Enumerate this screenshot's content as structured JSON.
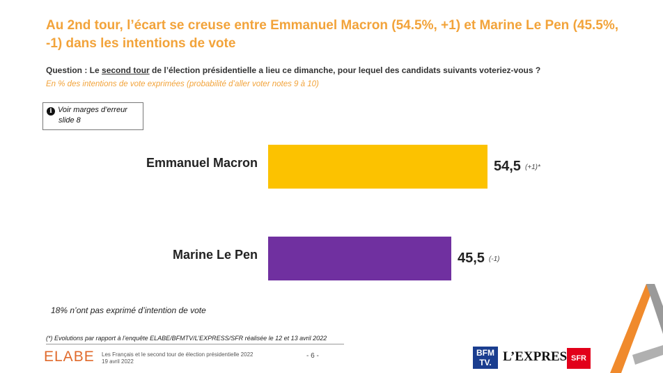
{
  "title": "Au 2nd tour, l’écart se creuse entre Emmanuel Macron (54.5%, +1) et Marine Le Pen (45.5%, -1) dans les intentions de vote",
  "question": {
    "prefix": "Question : Le ",
    "underlined": "second tour",
    "suffix": " de l’élection présidentielle a lieu ce dimanche, pour lequel des candidats suivants voteriez-vous ?"
  },
  "subquestion": "En % des intentions de vote exprimées (probabilité d’aller voter notes 9 à 10)",
  "note_box": {
    "line1": "Voir marges d’erreur",
    "line2": "slide 8",
    "icon": "info-icon"
  },
  "chart_data": {
    "type": "bar",
    "orientation": "horizontal",
    "categories": [
      "Emmanuel Macron",
      "Marine Le Pen"
    ],
    "values": [
      54.5,
      45.5
    ],
    "value_labels": [
      "54,5",
      "45,5"
    ],
    "evolutions": [
      "(+1)*",
      "(-1)"
    ],
    "colors": [
      "#fcc200",
      "#7030a0"
    ],
    "xlim": [
      0,
      100
    ],
    "grid": false,
    "legend": "none"
  },
  "non_expressed": "18% n’ont pas exprimé d’intention de vote",
  "evolution_note": "(*) Evolutions par rapport à l’enquête ELABE/BFMTV/L’EXPRESS/SFR réalisée le 12 et 13 avril 2022",
  "footer": {
    "brand": "ELABE",
    "line1": "Les Français et le second tour de élection présidentielle 2022",
    "line2": "19 avril 2022",
    "page": "- 6 -",
    "logos": {
      "bfm_line1": "BFM",
      "bfm_line2": "TV.",
      "lexpress": "L’EXPRESS",
      "sfr": "SFR"
    }
  }
}
